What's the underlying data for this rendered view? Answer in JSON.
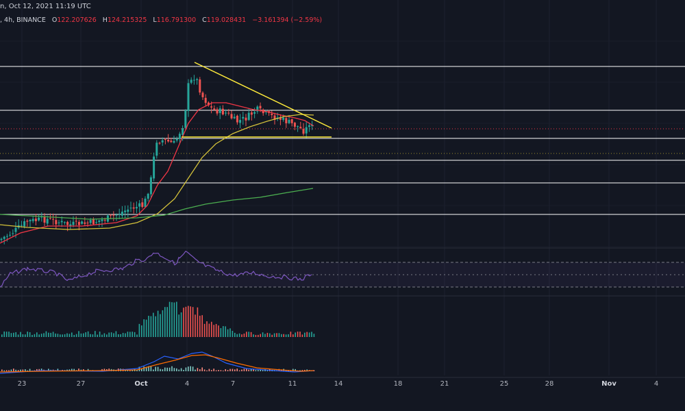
{
  "header": {
    "title_fragment": "n, Oct 12, 2021 11:19 UTC",
    "interval": ", 4h",
    "exchange": "BINANCE",
    "open_label": "O",
    "open": "122.207626",
    "high_label": "H",
    "high": "124.215325",
    "low_label": "L",
    "low": "116.791300",
    "close_label": "C",
    "close": "119.028431",
    "change": "−3.161394 (−2.59%)"
  },
  "time_axis": {
    "labels": [
      "23",
      "27",
      "Oct",
      "4",
      "7",
      "11",
      "14",
      "18",
      "21",
      "25",
      "28",
      "Nov",
      "4"
    ],
    "bold_labels": [
      "Oct",
      "Nov"
    ]
  },
  "colors": {
    "background": "#131722",
    "up_candle": "#26a69a",
    "down_candle": "#ef5350",
    "ema_red": "#f23645",
    "ema_yellow": "#d4c23a",
    "ema_green": "#4caf50",
    "triangle": "#ffeb3b",
    "level_lines": "#ffffff",
    "rsi": "#7e57c2",
    "macd": "#2962ff",
    "signal": "#ff6d00"
  },
  "chart_data": {
    "type": "candlestick",
    "panels": [
      "price",
      "rsi",
      "macd"
    ],
    "overlays": [
      "ema-red",
      "ema-yellow",
      "ema-green",
      "descending-triangle",
      "horizontal-levels"
    ]
  }
}
